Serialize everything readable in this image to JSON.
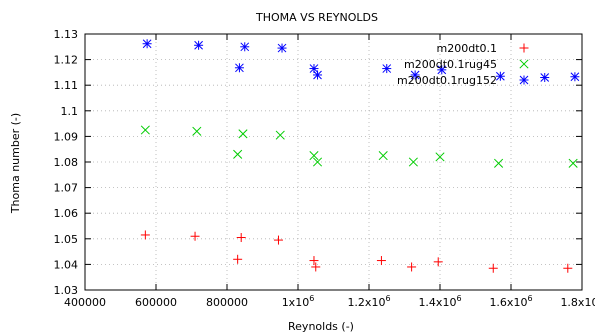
{
  "chart_data": {
    "type": "scatter",
    "title": "THOMA VS REYNOLDS",
    "xlabel": "Reynolds (-)",
    "ylabel": "Thoma number (-)",
    "xlim": [
      400000,
      1800000
    ],
    "ylim": [
      1.03,
      1.13
    ],
    "x_ticks": [
      {
        "value": 400000,
        "label": "400000"
      },
      {
        "value": 600000,
        "label": "600000"
      },
      {
        "value": 800000,
        "label": "800000"
      },
      {
        "value": 1000000,
        "base": "1x10",
        "exp": "6"
      },
      {
        "value": 1200000,
        "base": "1.2x10",
        "exp": "6"
      },
      {
        "value": 1400000,
        "base": "1.4x10",
        "exp": "6"
      },
      {
        "value": 1600000,
        "base": "1.6x10",
        "exp": "6"
      },
      {
        "value": 1800000,
        "base": "1.8x10",
        "exp": "6"
      }
    ],
    "y_ticks": [
      {
        "value": 1.03,
        "label": "1.03"
      },
      {
        "value": 1.04,
        "label": "1.04"
      },
      {
        "value": 1.05,
        "label": "1.05"
      },
      {
        "value": 1.06,
        "label": "1.06"
      },
      {
        "value": 1.07,
        "label": "1.07"
      },
      {
        "value": 1.08,
        "label": "1.08"
      },
      {
        "value": 1.09,
        "label": "1.09"
      },
      {
        "value": 1.1,
        "label": "1.1"
      },
      {
        "value": 1.11,
        "label": "1.11"
      },
      {
        "value": 1.12,
        "label": "1.12"
      },
      {
        "value": 1.13,
        "label": "1.13"
      }
    ],
    "grid": true,
    "legend_position": "top-right",
    "series": [
      {
        "name": "m200dt0.1",
        "marker": "plus",
        "color": "#ff0000",
        "points": [
          [
            570000,
            1.0515
          ],
          [
            710000,
            1.051
          ],
          [
            830000,
            1.042
          ],
          [
            840000,
            1.0505
          ],
          [
            945000,
            1.0495
          ],
          [
            1045000,
            1.0415
          ],
          [
            1050000,
            1.039
          ],
          [
            1235000,
            1.0415
          ],
          [
            1320000,
            1.039
          ],
          [
            1395000,
            1.041
          ],
          [
            1550000,
            1.0385
          ],
          [
            1760000,
            1.0385
          ]
        ]
      },
      {
        "name": "m200dt0.1rug45",
        "marker": "x",
        "color": "#00cc00",
        "points": [
          [
            570000,
            1.0925
          ],
          [
            715000,
            1.092
          ],
          [
            830000,
            1.083
          ],
          [
            845000,
            1.091
          ],
          [
            950000,
            1.0905
          ],
          [
            1045000,
            1.0825
          ],
          [
            1055000,
            1.08
          ],
          [
            1240000,
            1.0825
          ],
          [
            1325000,
            1.08
          ],
          [
            1400000,
            1.082
          ],
          [
            1565000,
            1.0795
          ],
          [
            1775000,
            1.0795
          ]
        ]
      },
      {
        "name": "m200dt0.1rug152",
        "marker": "star",
        "color": "#0000ff",
        "points": [
          [
            575000,
            1.1262
          ],
          [
            720000,
            1.1256
          ],
          [
            835000,
            1.1168
          ],
          [
            850000,
            1.125
          ],
          [
            955000,
            1.1245
          ],
          [
            1045000,
            1.1165
          ],
          [
            1055000,
            1.114
          ],
          [
            1250000,
            1.1165
          ],
          [
            1330000,
            1.114
          ],
          [
            1405000,
            1.116
          ],
          [
            1570000,
            1.1135
          ],
          [
            1695000,
            1.113
          ],
          [
            1780000,
            1.1133
          ]
        ]
      }
    ]
  }
}
